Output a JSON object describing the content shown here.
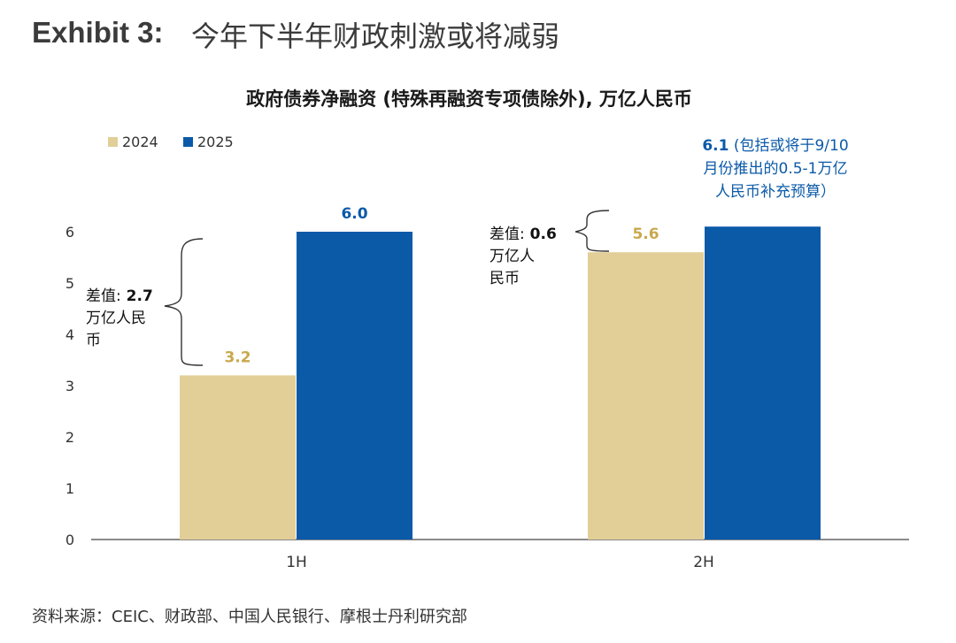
{
  "header": {
    "exhibit_label": "Exhibit 3:",
    "exhibit_title": "今年下半年财政刺激或将减弱"
  },
  "source_note": "资料来源：CEIC、财政部、中国人民银行、摩根士丹利研究部",
  "chart_data": {
    "type": "bar",
    "title": "政府债券净融资 (特殊再融资专项债除外), 万亿人民币",
    "xlabel": "",
    "ylabel": "",
    "categories": [
      "1H",
      "2H"
    ],
    "series": [
      {
        "name": "2024",
        "values": [
          3.2,
          5.6
        ],
        "color": "#e2cf98",
        "label_color": "#c9a84c",
        "data_labels": [
          "3.2",
          "5.6"
        ]
      },
      {
        "name": "2025",
        "values": [
          6.0,
          6.1
        ],
        "color": "#0b5aa8",
        "label_color": "#0b5aa8",
        "data_labels": [
          "6.0",
          ""
        ]
      }
    ],
    "ylim": [
      0,
      6.5
    ],
    "yticks": [
      "0",
      "1",
      "2",
      "3",
      "4",
      "5",
      "6"
    ],
    "grid": false,
    "legend_position": "top-left",
    "annotations": {
      "gap_1h": {
        "label": "差值:",
        "value": "2.7",
        "lines": [
          "万亿人民",
          "币"
        ]
      },
      "gap_2h": {
        "label": "差值:",
        "value": "0.6",
        "lines": [
          "万亿人",
          "民币"
        ]
      },
      "note_2h_2025": {
        "value": "6.1",
        "text_first": " (包括或将于9/10",
        "lines": [
          "月份推出的0.5-1万亿",
          "人民币补充预算）"
        ]
      }
    },
    "colors": {
      "brace": "#333333",
      "axis": "#444444",
      "tick_text": "#333333",
      "annotation_text": "#111111"
    }
  }
}
